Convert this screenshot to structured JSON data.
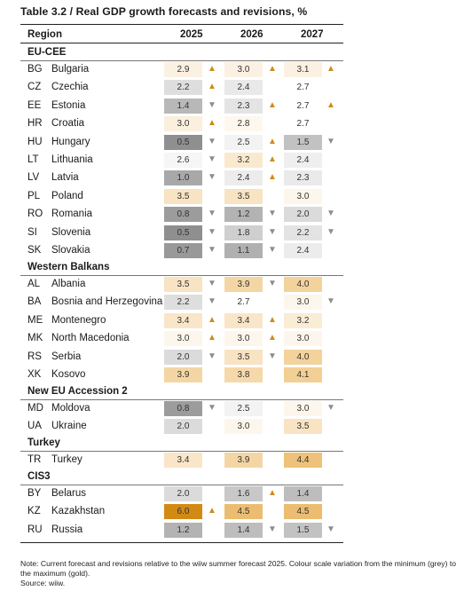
{
  "title": "Table 3.2 / Real GDP growth forecasts and revisions, %",
  "header": {
    "region": "Region",
    "years": [
      "2025",
      "2026",
      "2027"
    ]
  },
  "groups": [
    {
      "name": "EU-CEE",
      "rows": [
        {
          "code": "BG",
          "name": "Bulgaria",
          "values": [
            "2.9",
            "3.0",
            "3.1"
          ],
          "arrows": [
            "up",
            "up",
            "up"
          ],
          "colors": [
            "#fbf1e2",
            "#fbf1e2",
            "#fbf1e2"
          ]
        },
        {
          "code": "CZ",
          "name": "Czechia",
          "values": [
            "2.2",
            "2.4",
            "2.7"
          ],
          "arrows": [
            "up",
            "",
            ""
          ],
          "colors": [
            "#dedede",
            "#e9e9e9",
            "#ffffff"
          ]
        },
        {
          "code": "EE",
          "name": "Estonia",
          "values": [
            "1.4",
            "2.3",
            "2.7"
          ],
          "arrows": [
            "down",
            "up",
            "up"
          ],
          "colors": [
            "#b8b8b8",
            "#e4e4e4",
            "#ffffff"
          ]
        },
        {
          "code": "HR",
          "name": "Croatia",
          "values": [
            "3.0",
            "2.8",
            ""
          ],
          "arrows": [
            "up",
            "",
            ""
          ],
          "colors": [
            "#fbefdd",
            "#fdf7ee",
            "#ffffff"
          ],
          "extra2027": "2.7"
        },
        {
          "code": "HU",
          "name": "Hungary",
          "values": [
            "0.5",
            "2.5",
            "1.5"
          ],
          "arrows": [
            "down",
            "up",
            "down"
          ],
          "colors": [
            "#8f8f8f",
            "#f3f3f3",
            "#c2c2c2"
          ]
        },
        {
          "code": "LT",
          "name": "Lithuania",
          "values": [
            "2.6",
            "3.2",
            "2.4"
          ],
          "arrows": [
            "down",
            "up",
            ""
          ],
          "colors": [
            "#f6f6f6",
            "#f9e9cf",
            "#efefef"
          ]
        },
        {
          "code": "LV",
          "name": "Latvia",
          "values": [
            "1.0",
            "2.4",
            "2.3"
          ],
          "arrows": [
            "down",
            "up",
            ""
          ],
          "colors": [
            "#a8a8a8",
            "#ececec",
            "#eaeaea"
          ]
        },
        {
          "code": "PL",
          "name": "Poland",
          "values": [
            "3.5",
            "3.5",
            "3.0"
          ],
          "arrows": [
            "",
            "",
            ""
          ],
          "colors": [
            "#f8e3c2",
            "#f8e3c2",
            "#fdf6ec"
          ]
        },
        {
          "code": "RO",
          "name": "Romania",
          "values": [
            "0.8",
            "1.2",
            "2.0"
          ],
          "arrows": [
            "down",
            "down",
            "down"
          ],
          "colors": [
            "#9c9c9c",
            "#b3b3b3",
            "#dbdbdb"
          ]
        },
        {
          "code": "SI",
          "name": "Slovenia",
          "values": [
            "0.5",
            "1.8",
            "2.2"
          ],
          "arrows": [
            "down",
            "down",
            "down"
          ],
          "colors": [
            "#8f8f8f",
            "#cfcfcf",
            "#e3e3e3"
          ]
        },
        {
          "code": "SK",
          "name": "Slovakia",
          "values": [
            "0.7",
            "1.1",
            "2.4"
          ],
          "arrows": [
            "down",
            "down",
            ""
          ],
          "colors": [
            "#999999",
            "#b0b0b0",
            "#ececec"
          ]
        }
      ]
    },
    {
      "name": "Western Balkans",
      "rows": [
        {
          "code": "AL",
          "name": "Albania",
          "values": [
            "3.5",
            "3.9",
            "4.0"
          ],
          "arrows": [
            "down",
            "down",
            ""
          ],
          "colors": [
            "#f8e3c2",
            "#f4d6a5",
            "#f3d29c"
          ]
        },
        {
          "code": "BA",
          "name": "Bosnia and Herzegovina",
          "values": [
            "2.2",
            "2.7",
            "3.0"
          ],
          "arrows": [
            "down",
            "",
            "down"
          ],
          "colors": [
            "#dedede",
            "#ffffff",
            "#fdf6ec"
          ]
        },
        {
          "code": "ME",
          "name": "Montenegro",
          "values": [
            "3.4",
            "3.4",
            "3.2"
          ],
          "arrows": [
            "up",
            "up",
            ""
          ],
          "colors": [
            "#f9e6c8",
            "#f9e6c8",
            "#faecd5"
          ]
        },
        {
          "code": "MK",
          "name": "North Macedonia",
          "values": [
            "3.0",
            "3.0",
            "3.0"
          ],
          "arrows": [
            "up",
            "up",
            ""
          ],
          "colors": [
            "#fdf6ec",
            "#fdf6ec",
            "#fdf6ec"
          ]
        },
        {
          "code": "RS",
          "name": "Serbia",
          "values": [
            "2.0",
            "3.5",
            "4.0"
          ],
          "arrows": [
            "down",
            "down",
            ""
          ],
          "colors": [
            "#dbdbdb",
            "#f8e3c2",
            "#f3d29c"
          ]
        },
        {
          "code": "XK",
          "name": "Kosovo",
          "values": [
            "3.9",
            "3.8",
            "4.1"
          ],
          "arrows": [
            "",
            "",
            ""
          ],
          "colors": [
            "#f4d6a5",
            "#f5d9ab",
            "#f2cf95"
          ]
        }
      ]
    },
    {
      "name": "New EU Accession 2",
      "rows": [
        {
          "code": "MD",
          "name": "Moldova",
          "values": [
            "0.8",
            "2.5",
            "3.0"
          ],
          "arrows": [
            "down",
            "",
            "down"
          ],
          "colors": [
            "#9c9c9c",
            "#f3f3f3",
            "#fdf6ec"
          ]
        },
        {
          "code": "UA",
          "name": "Ukraine",
          "values": [
            "2.0",
            "3.0",
            "3.5"
          ],
          "arrows": [
            "",
            "",
            ""
          ],
          "colors": [
            "#dbdbdb",
            "#fdf6ec",
            "#f8e3c2"
          ]
        }
      ]
    },
    {
      "name": "Turkey",
      "rows": [
        {
          "code": "TR",
          "name": "Turkey",
          "values": [
            "3.4",
            "3.9",
            "4.4"
          ],
          "arrows": [
            "",
            "",
            ""
          ],
          "colors": [
            "#f9e6c8",
            "#f4d6a5",
            "#eec27a"
          ]
        }
      ]
    },
    {
      "name": "CIS3",
      "rows": [
        {
          "code": "BY",
          "name": "Belarus",
          "values": [
            "2.0",
            "1.6",
            "1.4"
          ],
          "arrows": [
            "",
            "up",
            ""
          ],
          "colors": [
            "#dbdbdb",
            "#c8c8c8",
            "#bdbdbd"
          ]
        },
        {
          "code": "KZ",
          "name": "Kazakhstan",
          "values": [
            "6.0",
            "4.5",
            "4.5"
          ],
          "arrows": [
            "up",
            "",
            ""
          ],
          "colors": [
            "#d38a12",
            "#ecbd70",
            "#ecbd70"
          ]
        },
        {
          "code": "RU",
          "name": "Russia",
          "values": [
            "1.2",
            "1.4",
            "1.5"
          ],
          "arrows": [
            "",
            "down",
            "down"
          ],
          "colors": [
            "#b3b3b3",
            "#bdbdbd",
            "#c2c2c2"
          ]
        }
      ]
    }
  ],
  "note": "Note: Current forecast and revisions relative to the wiiw summer forecast 2025. Colour scale variation from the minimum (grey) to the maximum (gold).",
  "source": "Source: wiiw."
}
